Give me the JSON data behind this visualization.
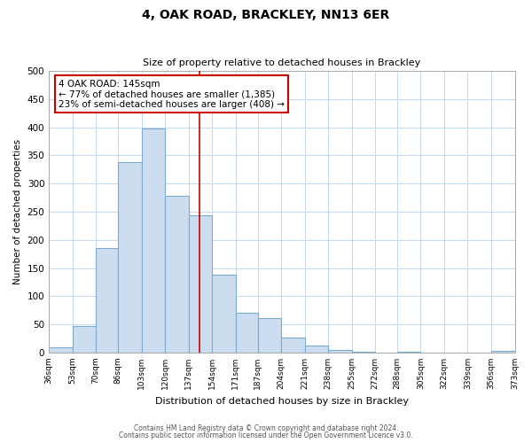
{
  "title": "4, OAK ROAD, BRACKLEY, NN13 6ER",
  "subtitle": "Size of property relative to detached houses in Brackley",
  "xlabel": "Distribution of detached houses by size in Brackley",
  "ylabel": "Number of detached properties",
  "bar_color": "#ccddf0",
  "bar_edge_color": "#7aaace",
  "bins": [
    36,
    53,
    70,
    86,
    103,
    120,
    137,
    154,
    171,
    187,
    204,
    221,
    238,
    255,
    272,
    288,
    305,
    322,
    339,
    356,
    373
  ],
  "values": [
    10,
    47,
    185,
    338,
    398,
    278,
    243,
    138,
    70,
    62,
    26,
    12,
    5,
    1,
    0,
    1,
    0,
    0,
    0,
    3
  ],
  "tick_labels": [
    "36sqm",
    "53sqm",
    "70sqm",
    "86sqm",
    "103sqm",
    "120sqm",
    "137sqm",
    "154sqm",
    "171sqm",
    "187sqm",
    "204sqm",
    "221sqm",
    "238sqm",
    "255sqm",
    "272sqm",
    "288sqm",
    "305sqm",
    "322sqm",
    "339sqm",
    "356sqm",
    "373sqm"
  ],
  "property_size": 145,
  "vline_color": "#cc0000",
  "annotation_line1": "4 OAK ROAD: 145sqm",
  "annotation_line2": "← 77% of detached houses are smaller (1,385)",
  "annotation_line3": "23% of semi-detached houses are larger (408) →",
  "annotation_box_color": "#ffffff",
  "annotation_box_edge": "#cc0000",
  "ylim": [
    0,
    500
  ],
  "yticks": [
    0,
    50,
    100,
    150,
    200,
    250,
    300,
    350,
    400,
    450,
    500
  ],
  "grid_color": "#c8d8ec",
  "footer1": "Contains HM Land Registry data © Crown copyright and database right 2024.",
  "footer2": "Contains public sector information licensed under the Open Government Licence v3.0."
}
